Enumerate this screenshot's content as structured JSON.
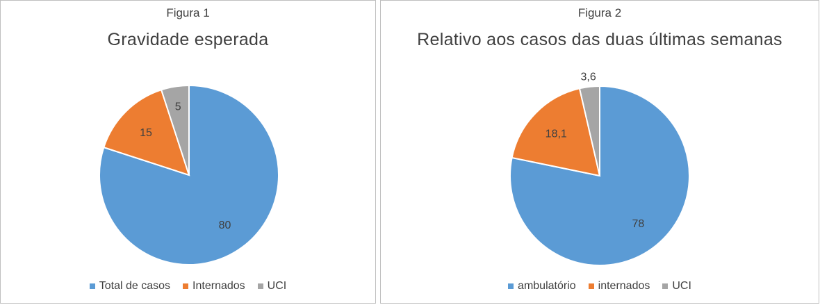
{
  "chart_data": [
    {
      "type": "pie",
      "figure_label": "Figura 1",
      "title": "Gravidade esperada",
      "categories": [
        "Total de casos",
        "Internados",
        "UCI"
      ],
      "values": [
        80,
        15,
        5
      ],
      "value_labels": [
        "80",
        "15",
        "5"
      ],
      "colors": [
        "#5b9bd5",
        "#ed7d31",
        "#a5a5a5"
      ],
      "legend_position": "bottom"
    },
    {
      "type": "pie",
      "figure_label": "Figura 2",
      "title": "Relativo aos casos das duas últimas semanas",
      "categories": [
        "ambulatório",
        "internados",
        "UCI"
      ],
      "values": [
        78,
        18.1,
        3.6
      ],
      "value_labels": [
        "78",
        "18,1",
        "3,6"
      ],
      "colors": [
        "#5b9bd5",
        "#ed7d31",
        "#a5a5a5"
      ],
      "legend_position": "bottom"
    }
  ]
}
